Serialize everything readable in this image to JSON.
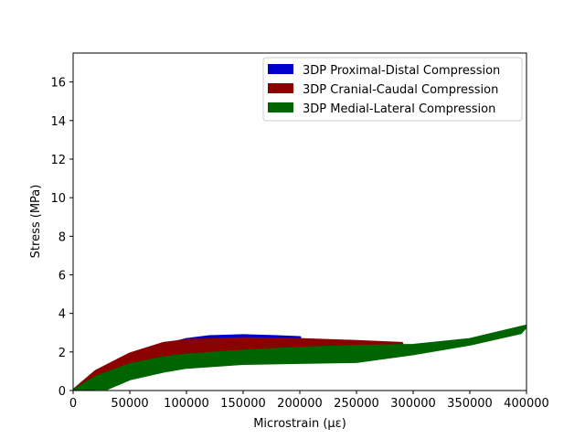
{
  "chart_data": {
    "type": "area",
    "title": "",
    "xlabel": "Microstrain (µε)",
    "ylabel": "Stress (MPa)",
    "xlim": [
      0,
      400000
    ],
    "ylim": [
      0,
      17.5
    ],
    "xticks": [
      0,
      50000,
      100000,
      150000,
      200000,
      250000,
      300000,
      350000,
      400000
    ],
    "xtick_labels": [
      "0",
      "50000",
      "100000",
      "150000",
      "200000",
      "250000",
      "300000",
      "350000",
      "400000"
    ],
    "yticks": [
      0,
      2,
      4,
      6,
      8,
      10,
      12,
      14,
      16
    ],
    "ytick_labels": [
      "0",
      "2",
      "4",
      "6",
      "8",
      "10",
      "12",
      "14",
      "16"
    ],
    "grid": false,
    "legend_position": "top-right",
    "series": [
      {
        "name": "3DP Proximal-Distal Compression",
        "color": "#0000cc",
        "upper": [
          [
            0,
            0
          ],
          [
            20000,
            0.9
          ],
          [
            50000,
            1.75
          ],
          [
            80000,
            2.35
          ],
          [
            100000,
            2.65
          ],
          [
            120000,
            2.8
          ],
          [
            150000,
            2.85
          ],
          [
            180000,
            2.8
          ],
          [
            200000,
            2.75
          ]
        ],
        "lower": [
          [
            0,
            0
          ],
          [
            20000,
            0.45
          ],
          [
            50000,
            1.2
          ],
          [
            80000,
            1.6
          ],
          [
            100000,
            1.85
          ],
          [
            120000,
            2.0
          ],
          [
            150000,
            2.1
          ],
          [
            180000,
            2.05
          ],
          [
            200000,
            2.0
          ]
        ]
      },
      {
        "name": "3DP Cranial-Caudal Compression",
        "color": "#8b0000",
        "upper": [
          [
            0,
            0
          ],
          [
            20000,
            1.0
          ],
          [
            50000,
            1.9
          ],
          [
            80000,
            2.45
          ],
          [
            100000,
            2.6
          ],
          [
            150000,
            2.7
          ],
          [
            200000,
            2.65
          ],
          [
            250000,
            2.55
          ],
          [
            290000,
            2.45
          ]
        ],
        "lower": [
          [
            0,
            0
          ],
          [
            20000,
            0.5
          ],
          [
            50000,
            1.3
          ],
          [
            80000,
            1.7
          ],
          [
            100000,
            1.85
          ],
          [
            150000,
            2.0
          ],
          [
            200000,
            2.05
          ],
          [
            250000,
            2.1
          ],
          [
            290000,
            2.1
          ]
        ]
      },
      {
        "name": "3DP Medial-Lateral Compression",
        "color": "#006400",
        "upper": [
          [
            0,
            0
          ],
          [
            20000,
            0.7
          ],
          [
            50000,
            1.35
          ],
          [
            80000,
            1.7
          ],
          [
            100000,
            1.85
          ],
          [
            150000,
            2.05
          ],
          [
            200000,
            2.2
          ],
          [
            250000,
            2.3
          ],
          [
            300000,
            2.35
          ],
          [
            350000,
            2.65
          ],
          [
            400000,
            3.35
          ]
        ],
        "lower": [
          [
            0,
            0
          ],
          [
            20000,
            0.1
          ],
          [
            30000,
            0.1
          ],
          [
            50000,
            0.6
          ],
          [
            80000,
            1.0
          ],
          [
            100000,
            1.2
          ],
          [
            150000,
            1.4
          ],
          [
            200000,
            1.45
          ],
          [
            250000,
            1.5
          ],
          [
            300000,
            1.9
          ],
          [
            350000,
            2.4
          ],
          [
            395000,
            3.0
          ]
        ]
      }
    ]
  }
}
